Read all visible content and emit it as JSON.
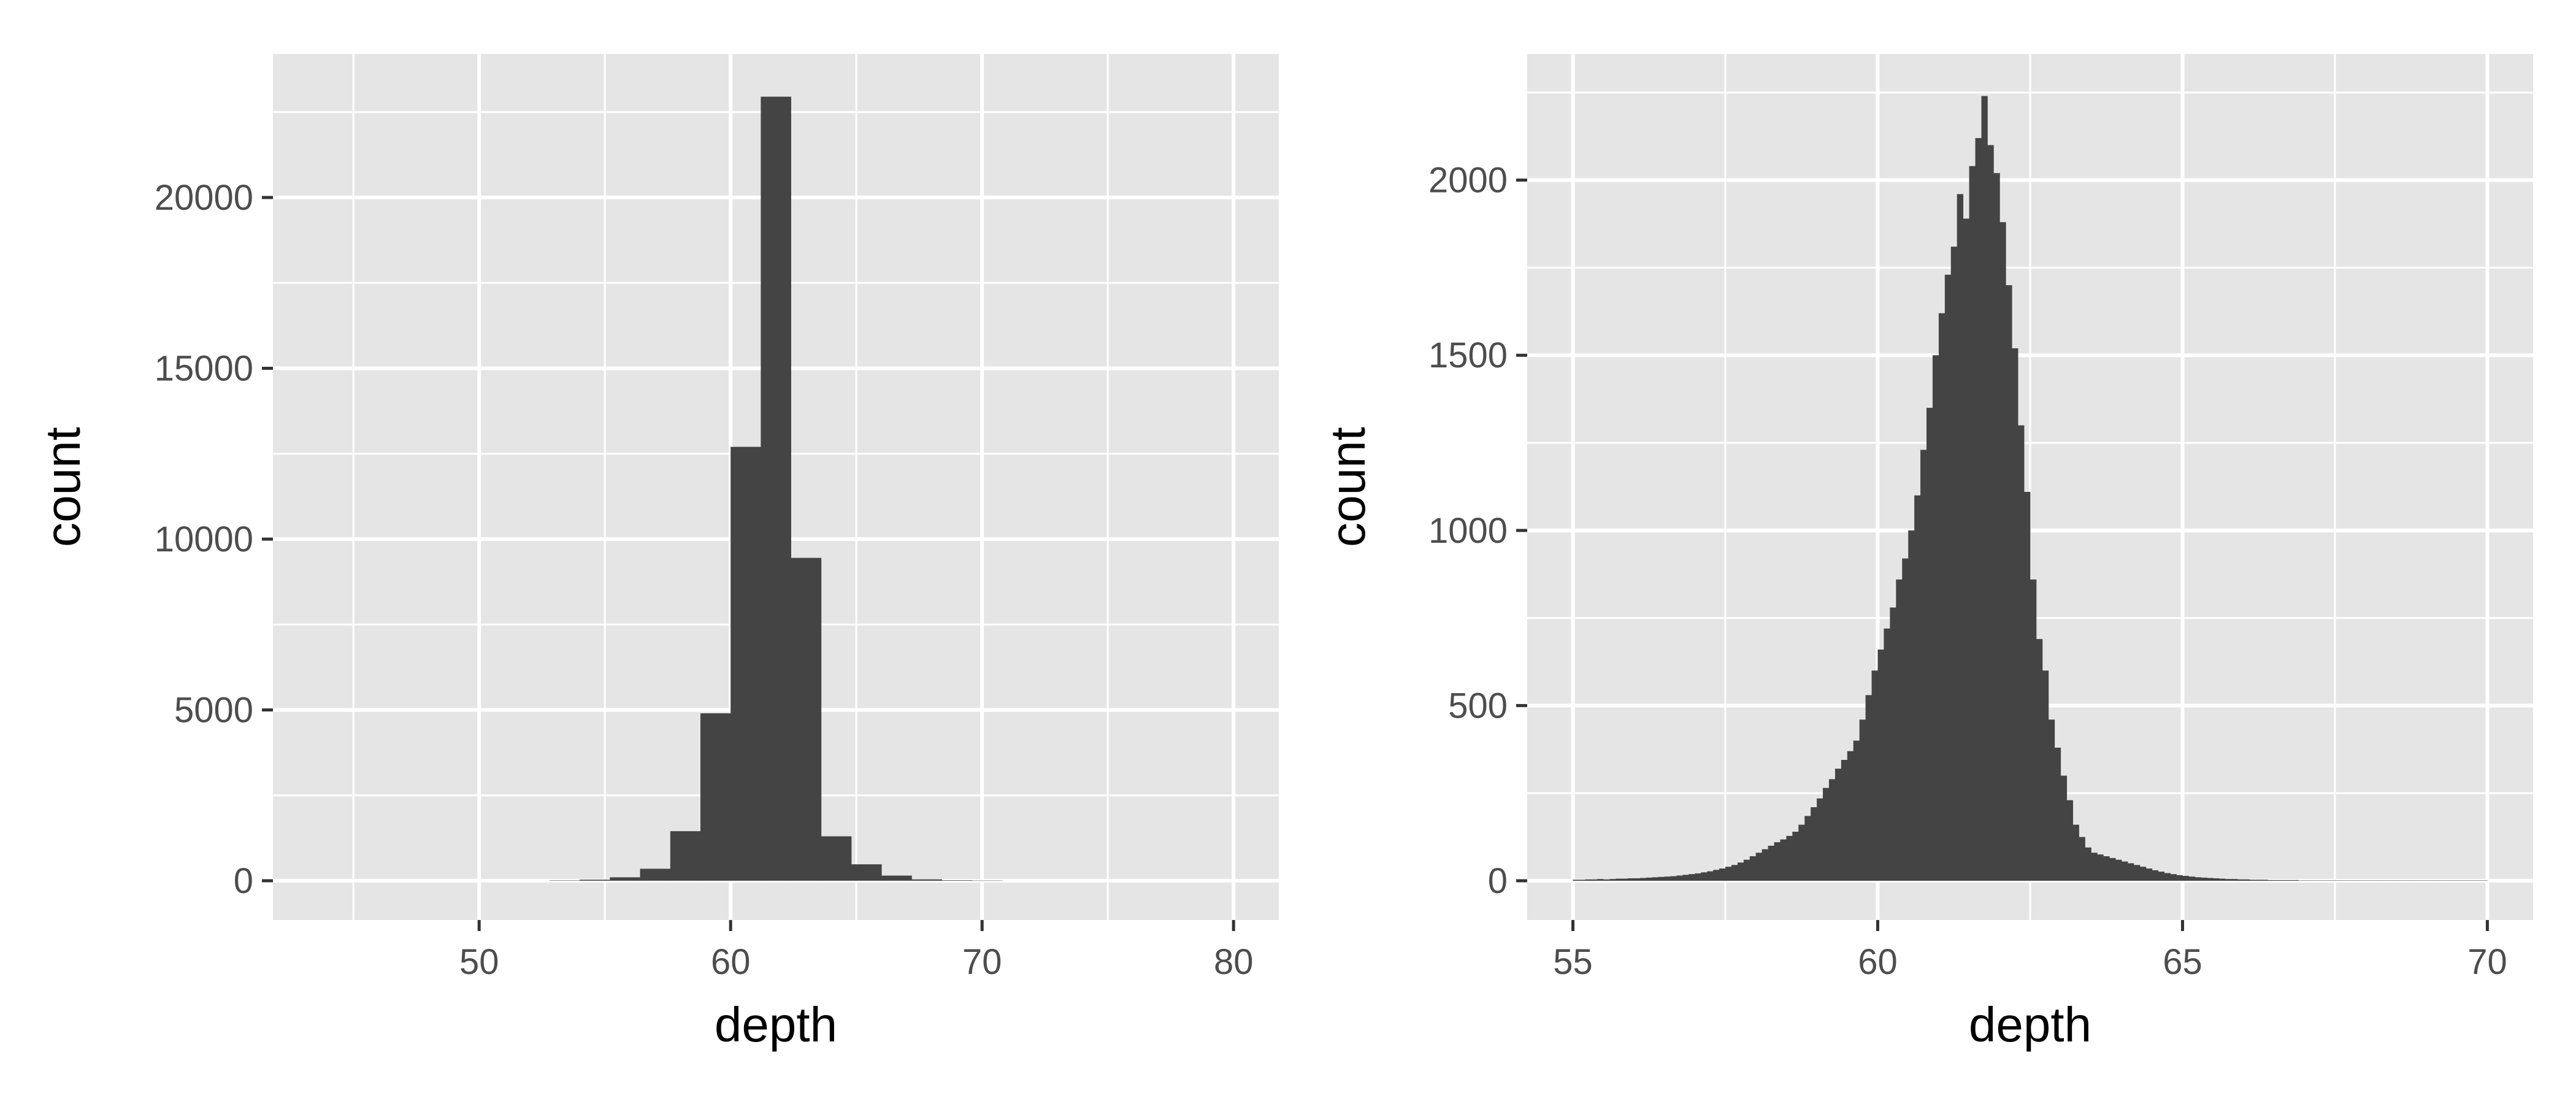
{
  "chart_data": [
    {
      "type": "bar",
      "title": "",
      "xlabel": "depth",
      "ylabel": "count",
      "xlim": [
        41.8,
        81.8
      ],
      "ylim": [
        -1150,
        24200
      ],
      "x_ticks": [
        "50",
        "60",
        "70",
        "80"
      ],
      "y_ticks": [
        "0",
        "5000",
        "10000",
        "15000",
        "20000"
      ],
      "bin_width": 1.2,
      "bins": [
        {
          "x0": 52.8,
          "count": 10
        },
        {
          "x0": 54.0,
          "count": 30
        },
        {
          "x0": 55.2,
          "count": 100
        },
        {
          "x0": 56.4,
          "count": 350
        },
        {
          "x0": 57.6,
          "count": 1450
        },
        {
          "x0": 58.8,
          "count": 4900
        },
        {
          "x0": 60.0,
          "count": 12700
        },
        {
          "x0": 61.2,
          "count": 22950
        },
        {
          "x0": 62.4,
          "count": 9450
        },
        {
          "x0": 63.6,
          "count": 1300
        },
        {
          "x0": 64.8,
          "count": 480
        },
        {
          "x0": 66.0,
          "count": 150
        },
        {
          "x0": 67.2,
          "count": 40
        },
        {
          "x0": 68.4,
          "count": 15
        },
        {
          "x0": 69.6,
          "count": 5
        }
      ],
      "grid": true,
      "background": "#e5e5e5",
      "bar_color": "#444444"
    },
    {
      "type": "bar",
      "title": "",
      "xlabel": "depth",
      "ylabel": "count",
      "xlim": [
        54.25,
        70.75
      ],
      "ylim": [
        -112,
        2360
      ],
      "x_ticks": [
        "55",
        "60",
        "65",
        "70"
      ],
      "y_ticks": [
        "0",
        "500",
        "1000",
        "1500",
        "2000"
      ],
      "bin_width": 0.1,
      "x_start": 55.0,
      "counts": [
        3,
        3,
        4,
        4,
        5,
        4,
        5,
        6,
        6,
        7,
        7,
        8,
        9,
        10,
        11,
        12,
        13,
        15,
        17,
        19,
        21,
        24,
        27,
        31,
        35,
        40,
        45,
        52,
        60,
        70,
        80,
        90,
        100,
        110,
        118,
        128,
        140,
        160,
        185,
        210,
        235,
        265,
        290,
        320,
        345,
        370,
        400,
        460,
        530,
        600,
        660,
        720,
        780,
        860,
        920,
        1000,
        1100,
        1230,
        1350,
        1500,
        1620,
        1730,
        1810,
        1960,
        1890,
        2040,
        2120,
        2240,
        2100,
        2020,
        1880,
        1700,
        1520,
        1300,
        1110,
        860,
        690,
        600,
        460,
        380,
        300,
        230,
        160,
        125,
        95,
        80,
        75,
        70,
        65,
        60,
        55,
        50,
        45,
        40,
        35,
        30,
        26,
        22,
        19,
        16,
        14,
        12,
        10,
        9,
        8,
        7,
        6,
        5,
        5,
        4,
        4,
        3,
        3,
        3,
        2,
        2,
        2,
        2,
        2,
        1,
        1,
        1,
        1,
        1,
        1,
        1,
        1,
        1,
        1,
        1,
        1,
        1,
        1,
        1,
        1,
        1,
        1,
        1,
        1,
        1,
        1,
        1,
        1,
        1,
        1,
        1,
        1,
        1,
        1,
        1
      ],
      "grid": true,
      "background": "#e5e5e5",
      "bar_color": "#444444"
    }
  ]
}
